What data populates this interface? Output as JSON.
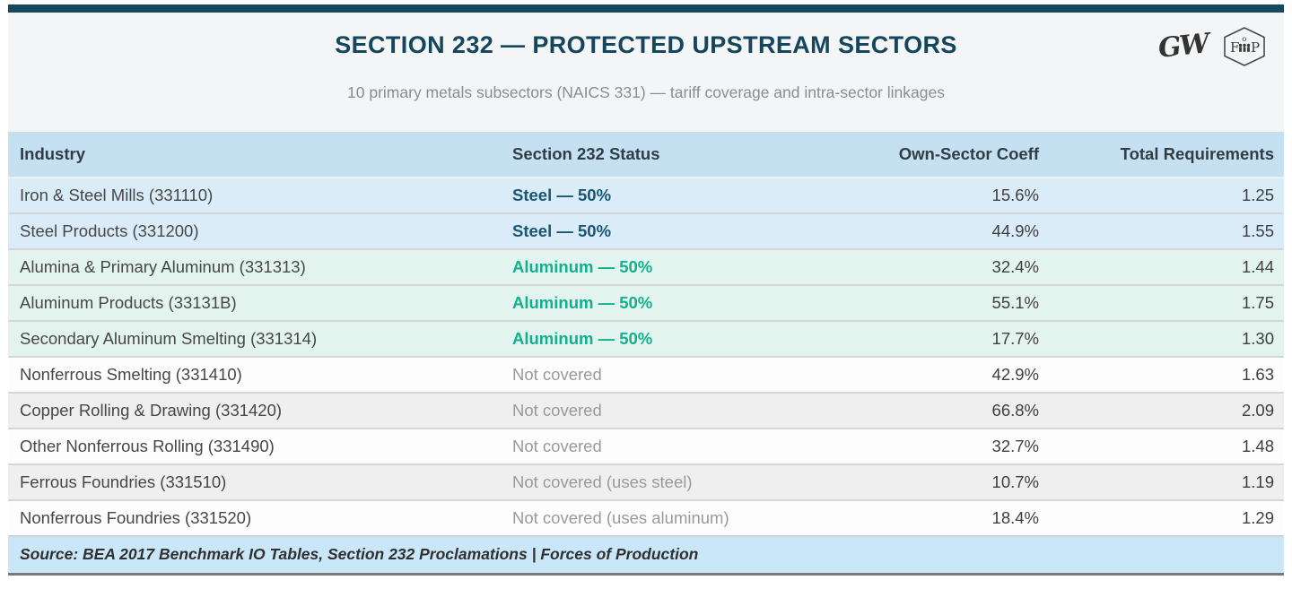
{
  "header": {
    "title": "SECTION 232 — PROTECTED UPSTREAM SECTORS",
    "subtitle": "10 primary metals subsectors (NAICS 331) — tariff coverage and intra-sector linkages",
    "logo_script_text": "GW",
    "logo_badge": {
      "left": "F",
      "right": "P",
      "top": "o",
      "shape": "hexagon",
      "people_icon": "three-figures"
    }
  },
  "colors": {
    "accent_bar": "#15485f",
    "title_text": "#14465c",
    "header_row_bg": "#c4e0f1",
    "steel_row_bg": "#d9ecf8",
    "steel_text": "#1a5674",
    "aluminum_row_bg": "#e3f4ee",
    "aluminum_text": "#10b090",
    "alt_row_bg": "#efefef",
    "not_covered_text": "#9a9a9a",
    "footer_bg": "#c9e7f8"
  },
  "chart_data": {
    "type": "table",
    "title": "SECTION 232 — PROTECTED UPSTREAM SECTORS",
    "subtitle": "10 primary metals subsectors (NAICS 331) — tariff coverage and intra-sector linkages",
    "columns": [
      "Industry",
      "Section 232 Status",
      "Own-Sector Coeff",
      "Total Requirements"
    ],
    "rows": [
      {
        "industry": "Iron & Steel Mills (331110)",
        "status": "Steel — 50%",
        "coeff": "15.6%",
        "total": "1.25",
        "category": "steel"
      },
      {
        "industry": "Steel Products (331200)",
        "status": "Steel — 50%",
        "coeff": "44.9%",
        "total": "1.55",
        "category": "steel"
      },
      {
        "industry": "Alumina & Primary Aluminum (331313)",
        "status": "Aluminum — 50%",
        "coeff": "32.4%",
        "total": "1.44",
        "category": "aluminum"
      },
      {
        "industry": "Aluminum Products (33131B)",
        "status": "Aluminum — 50%",
        "coeff": "55.1%",
        "total": "1.75",
        "category": "aluminum"
      },
      {
        "industry": "Secondary Aluminum Smelting (331314)",
        "status": "Aluminum — 50%",
        "coeff": "17.7%",
        "total": "1.30",
        "category": "aluminum"
      },
      {
        "industry": "Nonferrous Smelting (331410)",
        "status": "Not covered",
        "coeff": "42.9%",
        "total": "1.63",
        "category": "plain"
      },
      {
        "industry": "Copper Rolling & Drawing (331420)",
        "status": "Not covered",
        "coeff": "66.8%",
        "total": "2.09",
        "category": "alt"
      },
      {
        "industry": "Other Nonferrous Rolling (331490)",
        "status": "Not covered",
        "coeff": "32.7%",
        "total": "1.48",
        "category": "plain"
      },
      {
        "industry": "Ferrous Foundries (331510)",
        "status": "Not covered (uses steel)",
        "coeff": "10.7%",
        "total": "1.19",
        "category": "alt"
      },
      {
        "industry": "Nonferrous Foundries (331520)",
        "status": "Not covered (uses aluminum)",
        "coeff": "18.4%",
        "total": "1.29",
        "category": "plain"
      }
    ],
    "source": "Source: BEA 2017 Benchmark IO Tables, Section 232 Proclamations | Forces of Production"
  }
}
